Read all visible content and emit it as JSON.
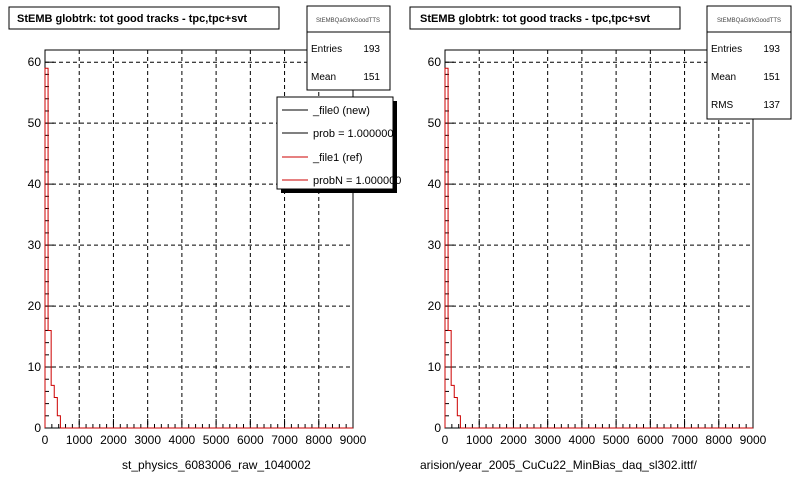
{
  "chart_data": [
    {
      "type": "histogram",
      "title": "StEMB globtrk: tot good tracks - tpc,tpc+svt",
      "xlabel": "st_physics_6083006_raw_1040002",
      "ylabel": "",
      "xlim": [
        0,
        9000
      ],
      "ylim": [
        0,
        62
      ],
      "x_ticks": [
        "0",
        "1000",
        "2000",
        "3000",
        "4000",
        "5000",
        "6000",
        "7000",
        "8000",
        "9000"
      ],
      "y_ticks": [
        "0",
        "10",
        "20",
        "30",
        "40",
        "50",
        "60"
      ],
      "grid": true,
      "stats": {
        "name": "StEMBQaGtrkGoodTTS",
        "rows": [
          {
            "label": "Entries",
            "value": "193"
          },
          {
            "label": "Mean",
            "value": "151"
          }
        ]
      },
      "legend": {
        "placement": "top-right",
        "entries": [
          {
            "label": "_file0 (new)",
            "color": "#000000"
          },
          {
            "label": "prob = 1.000000",
            "color": "#000000"
          },
          {
            "label": "_file1 (ref)",
            "color": "#cc0000"
          },
          {
            "label": "probN = 1.000000",
            "color": "#cc0000"
          }
        ]
      },
      "series": [
        {
          "color": "#cc0000",
          "bin_width": 90,
          "values": [
            59,
            16,
            7,
            5,
            2
          ]
        }
      ]
    },
    {
      "type": "histogram",
      "title": "StEMB globtrk: tot good tracks - tpc,tpc+svt",
      "xlabel": "arision/year_2005_CuCu22_MinBias_daq_sl302.ittf/",
      "ylabel": "",
      "xlim": [
        0,
        9000
      ],
      "ylim": [
        0,
        62
      ],
      "x_ticks": [
        "0",
        "1000",
        "2000",
        "3000",
        "4000",
        "5000",
        "6000",
        "7000",
        "8000",
        "9000"
      ],
      "y_ticks": [
        "0",
        "10",
        "20",
        "30",
        "40",
        "50",
        "60"
      ],
      "grid": true,
      "stats": {
        "name": "StEMBQaGtrkGoodTTS",
        "rows": [
          {
            "label": "Entries",
            "value": "193"
          },
          {
            "label": "Mean",
            "value": "151"
          },
          {
            "label": "RMS",
            "value": "137"
          }
        ]
      },
      "series": [
        {
          "color": "#cc0000",
          "bin_width": 90,
          "values": [
            59,
            16,
            7,
            5,
            2
          ]
        }
      ]
    }
  ]
}
